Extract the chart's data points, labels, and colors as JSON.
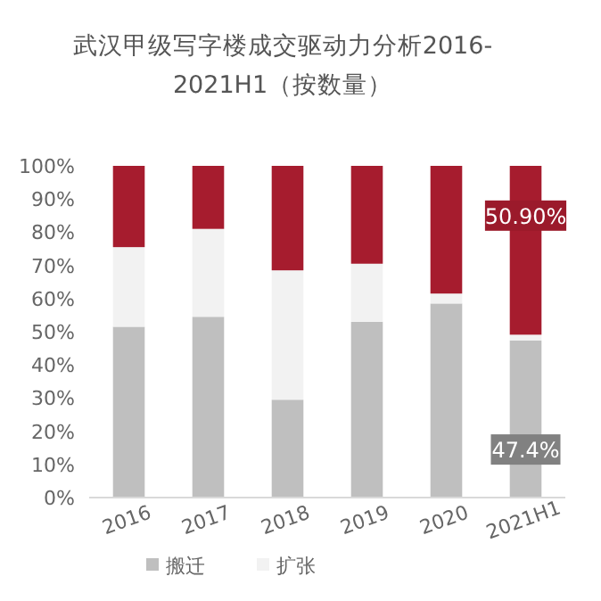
{
  "chart_data": {
    "type": "bar",
    "title": "武汉甲级写字楼成交驱动力分析2016-2021H1（按数量）",
    "stacked": true,
    "categories": [
      "2016",
      "2017",
      "2018",
      "2019",
      "2020",
      "2021H1"
    ],
    "series": [
      {
        "name": "搬迁",
        "color": "#bfbfbf",
        "values": [
          51.5,
          54.5,
          29.5,
          53,
          58.5,
          47.4
        ],
        "value_labels": [
          null,
          null,
          null,
          null,
          null,
          "47.4%"
        ]
      },
      {
        "name": "扩张",
        "color": "#f2f2f2",
        "values": [
          24,
          26.5,
          39,
          17.5,
          3,
          1.7
        ]
      },
      {
        "color": "#a61c2e",
        "values": [
          24.5,
          19,
          31.5,
          29.5,
          38.5,
          50.9
        ],
        "value_labels": [
          null,
          null,
          null,
          null,
          null,
          "50.90%"
        ]
      }
    ],
    "ylim": [
      0,
      100
    ],
    "yticks": [
      {
        "value": 0,
        "label": "0%"
      },
      {
        "value": 10,
        "label": "10%"
      },
      {
        "value": 20,
        "label": "20%"
      },
      {
        "value": 30,
        "label": "30%"
      },
      {
        "value": 40,
        "label": "40%"
      },
      {
        "value": 50,
        "label": "50%"
      },
      {
        "value": 60,
        "label": "60%"
      },
      {
        "value": 70,
        "label": "70%"
      },
      {
        "value": 80,
        "label": "80%"
      },
      {
        "value": 90,
        "label": "90%"
      },
      {
        "value": 100,
        "label": "100%"
      }
    ],
    "grid": false,
    "legend": "bottom"
  }
}
